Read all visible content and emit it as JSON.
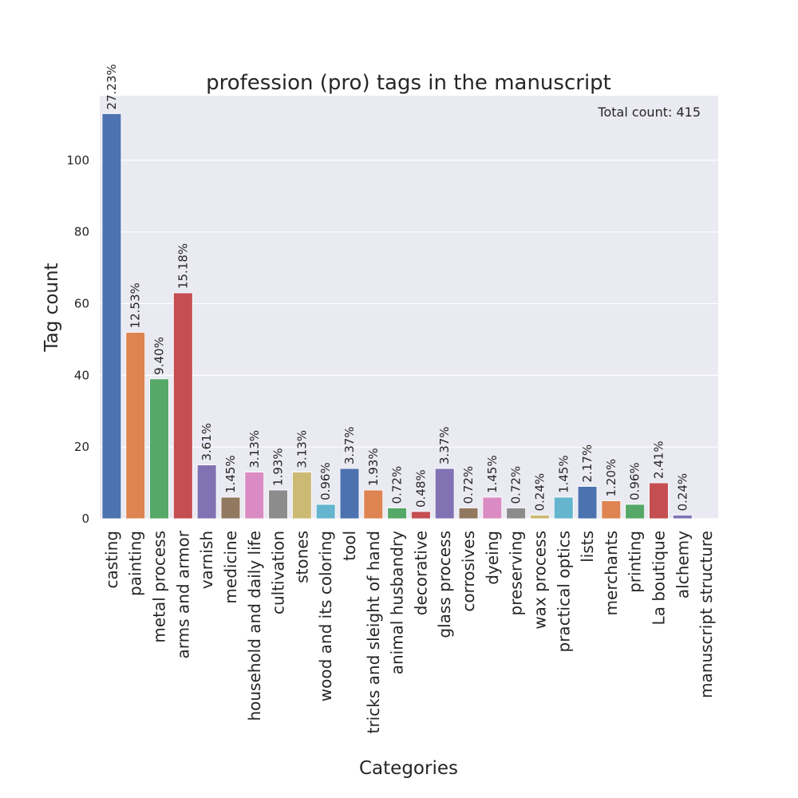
{
  "chart_data": {
    "type": "bar",
    "title": "profession (pro) tags in the manuscript",
    "xlabel": "Categories",
    "ylabel": "Tag count",
    "annotation": "Total count: 415",
    "ylim": [
      0,
      118
    ],
    "yticks": [
      0,
      20,
      40,
      60,
      80,
      100
    ],
    "grid": true,
    "categories": [
      "casting",
      "painting",
      "metal process",
      "arms and armor",
      "varnish",
      "medicine",
      "household and daily life",
      "cultivation",
      "stones",
      "wood and its coloring",
      "tool",
      "tricks and sleight of hand",
      "animal husbandry",
      "decorative",
      "glass process",
      "corrosives",
      "dyeing",
      "preserving",
      "wax process",
      "practical optics",
      "lists",
      "merchants",
      "printing",
      "La boutique",
      "alchemy",
      "manuscript structure"
    ],
    "values": [
      113,
      52,
      39,
      63,
      15,
      6,
      13,
      8,
      13,
      4,
      14,
      8,
      3,
      2,
      14,
      3,
      6,
      3,
      1,
      6,
      9,
      5,
      4,
      10,
      1,
      0
    ],
    "labels": [
      "27.23%",
      "12.53%",
      "9.40%",
      "15.18%",
      "3.61%",
      "1.45%",
      "3.13%",
      "1.93%",
      "3.13%",
      "0.96%",
      "3.37%",
      "1.93%",
      "0.72%",
      "0.48%",
      "3.37%",
      "0.72%",
      "1.45%",
      "0.72%",
      "0.24%",
      "1.45%",
      "2.17%",
      "1.20%",
      "0.96%",
      "2.41%",
      "0.24%",
      ""
    ],
    "colors": [
      "#4c72b0",
      "#dd8452",
      "#55a868",
      "#c44e52",
      "#8172b3",
      "#937860",
      "#da8bc3",
      "#8c8c8c",
      "#ccb974",
      "#64b5cd",
      "#4c72b0",
      "#dd8452",
      "#55a868",
      "#c44e52",
      "#8172b3",
      "#937860",
      "#da8bc3",
      "#8c8c8c",
      "#ccb974",
      "#64b5cd",
      "#4c72b0",
      "#dd8452",
      "#55a868",
      "#c44e52",
      "#8172b3",
      "#937860"
    ]
  }
}
